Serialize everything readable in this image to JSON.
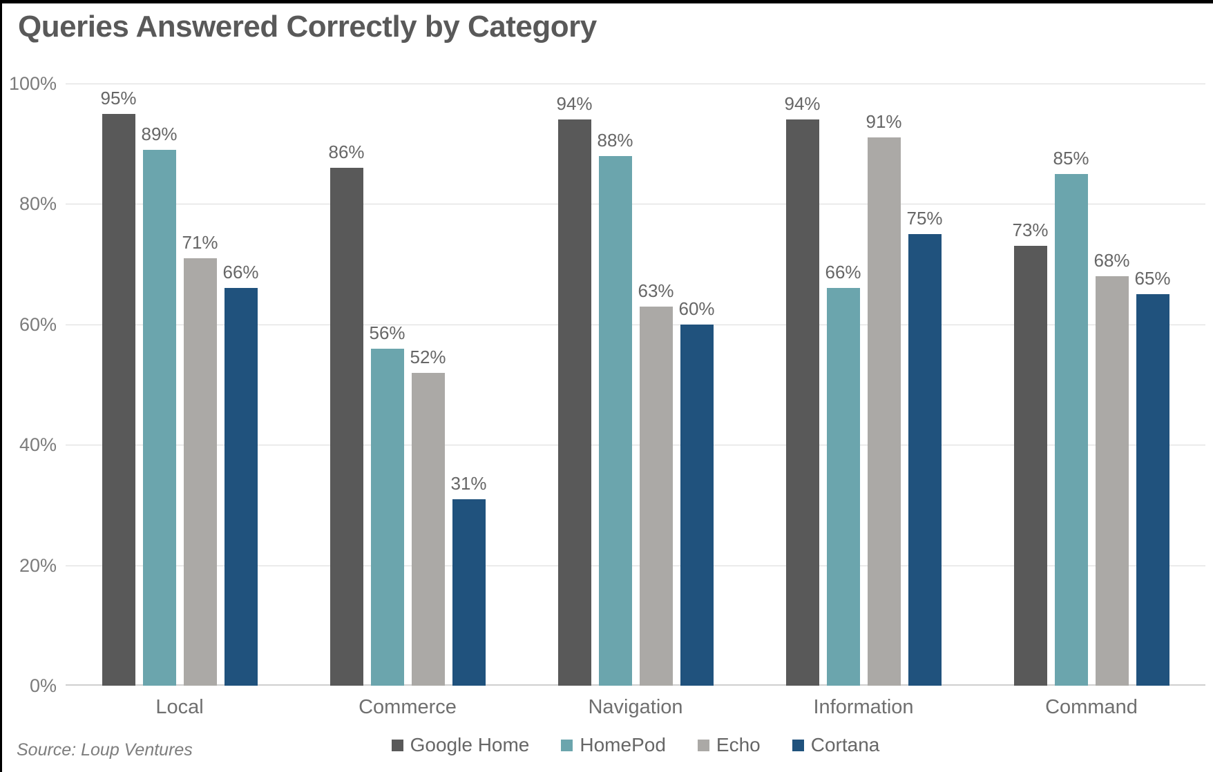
{
  "chart_data": {
    "type": "bar",
    "title": "Queries Answered Correctly by Category",
    "categories": [
      "Local",
      "Commerce",
      "Navigation",
      "Information",
      "Command"
    ],
    "series": [
      {
        "name": "Google Home",
        "color": "#595959",
        "values": [
          95,
          86,
          94,
          94,
          73
        ]
      },
      {
        "name": "HomePod",
        "color": "#6BA5AD",
        "values": [
          89,
          56,
          88,
          66,
          85
        ]
      },
      {
        "name": "Echo",
        "color": "#ABA9A6",
        "values": [
          71,
          52,
          63,
          91,
          68
        ]
      },
      {
        "name": "Cortana",
        "color": "#20527D",
        "values": [
          66,
          31,
          60,
          75,
          65
        ]
      }
    ],
    "value_suffix": "%",
    "xlabel": "",
    "ylabel": "",
    "ylim": [
      0,
      100
    ],
    "yticks": [
      "0%",
      "20%",
      "40%",
      "60%",
      "80%",
      "100%"
    ],
    "grid": true,
    "legend_position": "bottom",
    "colors": {
      "title_text": "#595959",
      "axis_text": "#7b7b7b",
      "value_label_text": "#666666",
      "gridline": "#dadada",
      "frame_border": "#000000",
      "background": "#ffffff"
    }
  },
  "source": "Source: Loup Ventures"
}
